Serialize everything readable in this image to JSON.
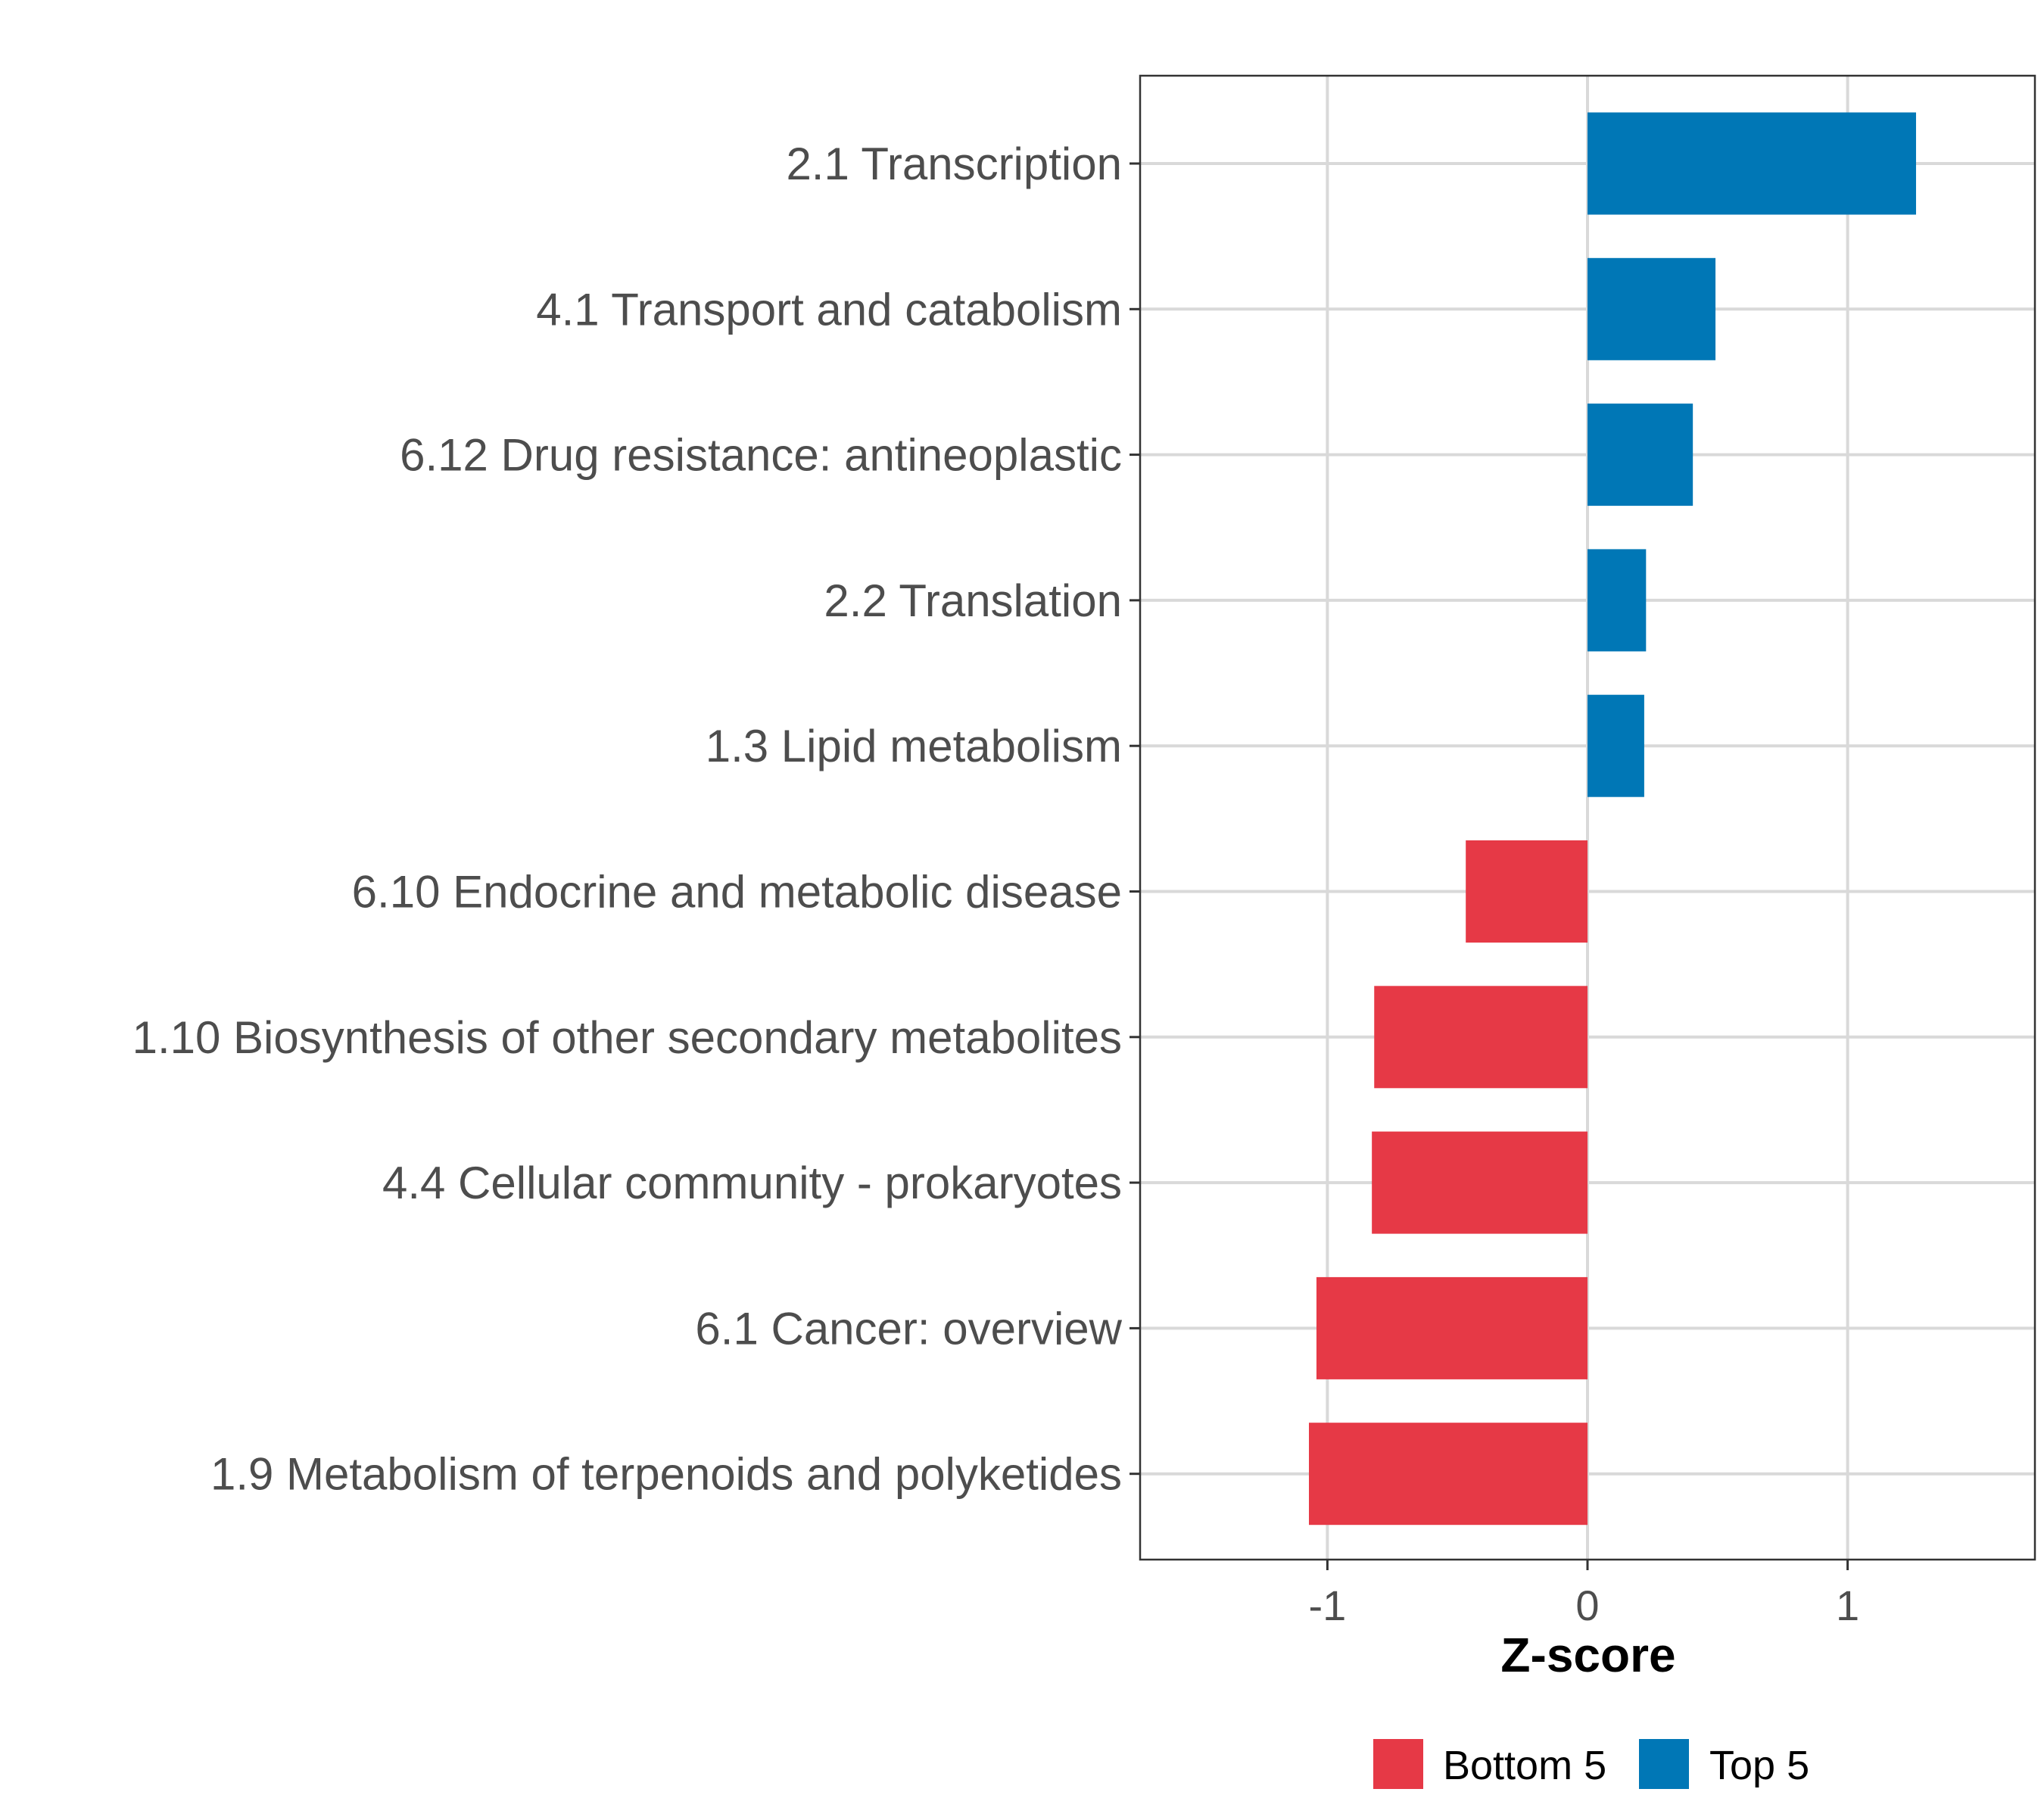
{
  "chart_data": {
    "type": "bar",
    "orientation": "horizontal",
    "categories": [
      "2.1 Transcription",
      "4.1 Transport and catabolism",
      "6.12 Drug resistance: antineoplastic",
      "2.2 Translation",
      "1.3 Lipid metabolism",
      "6.10 Endocrine and metabolic disease",
      "1.10 Biosynthesis of other secondary metabolites",
      "4.4 Cellular community - prokaryotes",
      "6.1 Cancer: overview",
      "1.9 Metabolism of terpenoids and polyketides"
    ],
    "values": [
      1.263,
      0.492,
      0.405,
      0.225,
      0.218,
      -0.468,
      -0.82,
      -0.829,
      -1.042,
      -1.071
    ],
    "groups": [
      "Top 5",
      "Top 5",
      "Top 5",
      "Top 5",
      "Top 5",
      "Bottom 5",
      "Bottom 5",
      "Bottom 5",
      "Bottom 5",
      "Bottom 5"
    ],
    "xlabel": "Z-score",
    "ylabel": "",
    "xlim": [
      -1.72,
      1.72
    ],
    "xticks": [
      -1,
      0,
      1
    ],
    "xtick_labels": [
      "-1",
      "0",
      "1"
    ],
    "grid": true,
    "legend": {
      "placement": "bottom",
      "entries": [
        {
          "label": "Bottom 5",
          "color": "#E63946"
        },
        {
          "label": "Top 5",
          "color": "#0077B6"
        }
      ]
    }
  }
}
